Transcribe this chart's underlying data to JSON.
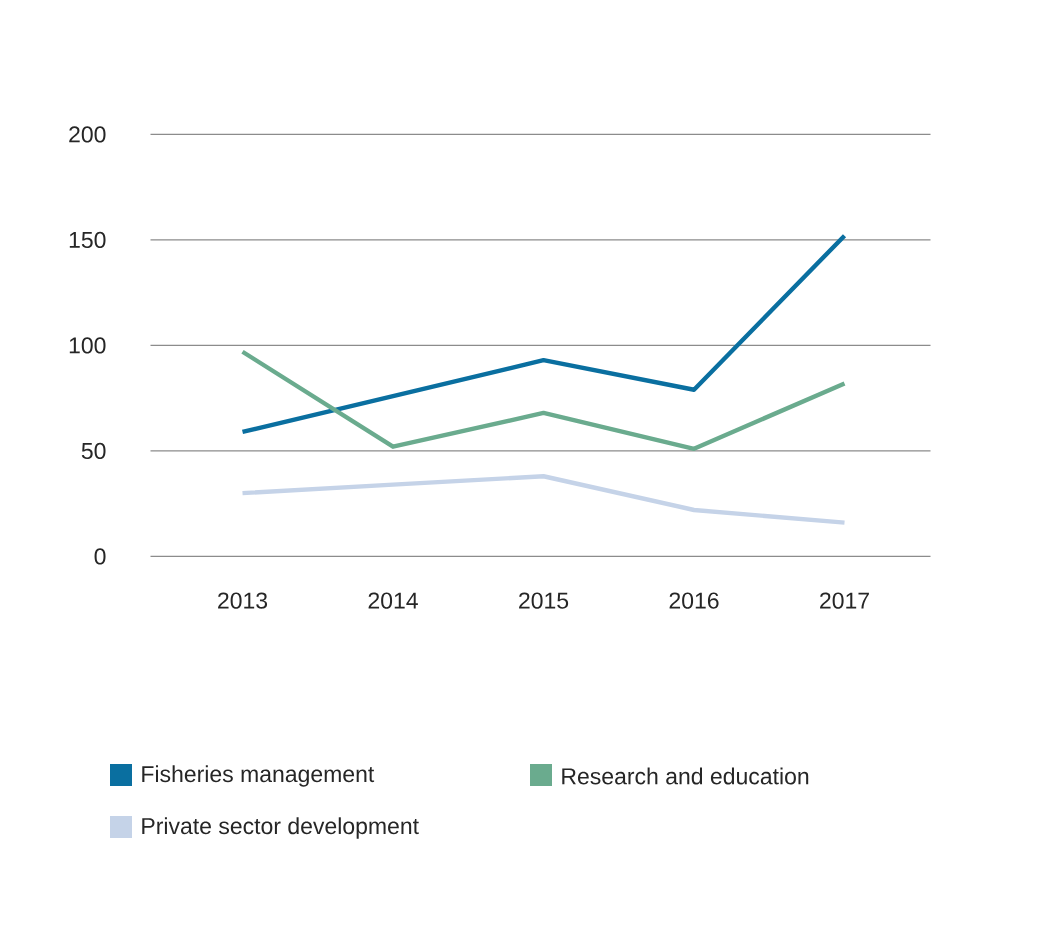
{
  "chart_data": {
    "type": "line",
    "categories": [
      "2013",
      "2014",
      "2015",
      "2016",
      "2017"
    ],
    "series": [
      {
        "name": "Fisheries management",
        "color": "#0a6fa0",
        "values": [
          59,
          76,
          93,
          79,
          152
        ]
      },
      {
        "name": "Research and education",
        "color": "#6aab8e",
        "values": [
          97,
          52,
          68,
          51,
          82
        ]
      },
      {
        "name": "Private sector development",
        "color": "#c5d3e8",
        "values": [
          30,
          34,
          38,
          22,
          16
        ]
      }
    ],
    "ylim": [
      0,
      200
    ],
    "yticks": [
      0,
      50,
      100,
      150,
      200
    ],
    "grid": "y",
    "legend": "bottom",
    "marker": "none",
    "line_style": "solid"
  }
}
